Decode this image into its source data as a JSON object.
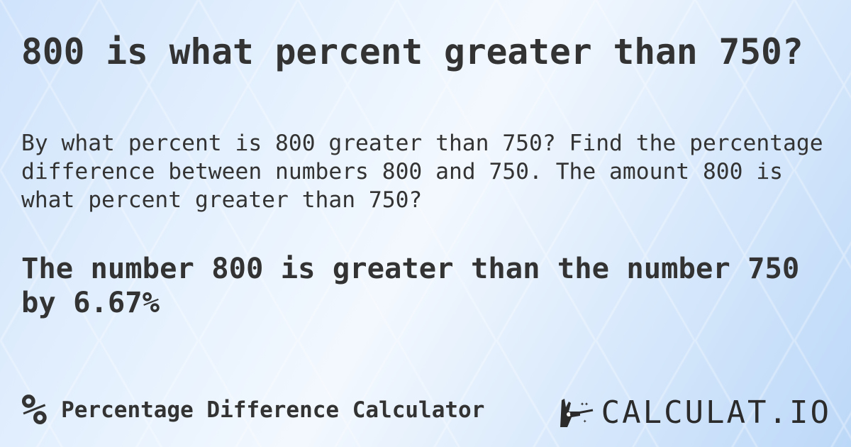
{
  "title": "800 is what percent greater than 750?",
  "description": "By what percent is 800 greater than 750? Find the percentage difference between numbers 800 and 750. The amount 800 is what percent greater than 750?",
  "result": "The number 800 is greater than the number 750 by 6.67%",
  "footer": {
    "icon": "percent-icon",
    "symbol": "%",
    "calculator_name": "Percentage Difference Calculator"
  },
  "logo": {
    "text": "CALCULAT.IO",
    "icon": "magic-hand-icon"
  }
}
